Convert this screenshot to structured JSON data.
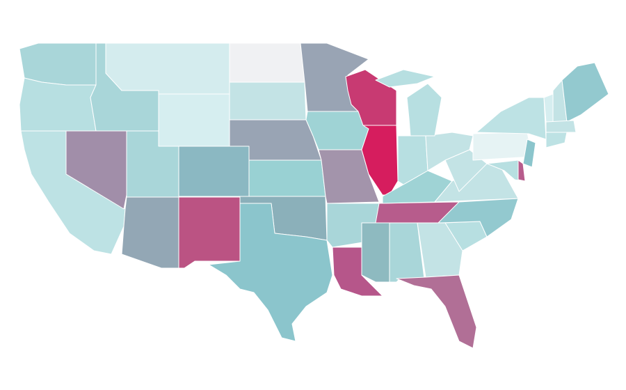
{
  "map": {
    "regions": [
      {
        "color": "#a9d6d9"
      },
      {
        "color": "#b7dfe1"
      },
      {
        "color": "#bde2e4"
      },
      {
        "color": "#a18ea9"
      },
      {
        "color": "#a9d6d9"
      },
      {
        "color": "#d4ecee"
      },
      {
        "color": "#d6eef0"
      },
      {
        "color": "#a9d6d9"
      },
      {
        "color": "#93a7b5"
      },
      {
        "color": "#8bb8c2"
      },
      {
        "color": "#bb5383"
      },
      {
        "color": "#f0f1f3"
      },
      {
        "color": "#c3e3e5"
      },
      {
        "color": "#99a4b4"
      },
      {
        "color": "#99d1d3"
      },
      {
        "color": "#8bb0ba"
      },
      {
        "color": "#8bc5cc"
      },
      {
        "color": "#99a4b4"
      },
      {
        "color": "#9fd3d5"
      },
      {
        "color": "#a394ab"
      },
      {
        "color": "#c83a72"
      },
      {
        "color": "#d61d5e"
      },
      {
        "color": "#a9d6d9"
      },
      {
        "color": "#b6568a"
      },
      {
        "color": "#8ebac0"
      },
      {
        "color": "#a9d6d9"
      },
      {
        "color": "#c3e3e5"
      },
      {
        "color": "#b16f96"
      },
      {
        "color": "#b75c8c"
      },
      {
        "color": "#9fd3d5"
      },
      {
        "color": "#b7dfe1"
      },
      {
        "color": "#93c9cf"
      },
      {
        "color": "#c3e3e5"
      },
      {
        "color": "#c3e3e5"
      },
      {
        "color": "#b7dfe1"
      },
      {
        "color": "#c3e3e5"
      },
      {
        "color": "#b7dfe1"
      },
      {
        "color": "#b7dfe1"
      },
      {
        "color": "#e6f3f4"
      },
      {
        "color": "#bde2e4"
      },
      {
        "color": "#8bc5cc"
      },
      {
        "color": "#b7dfe1"
      },
      {
        "color": "#b75c8c"
      },
      {
        "color": "#d6eef0"
      },
      {
        "color": "#c3e3e5"
      },
      {
        "color": "#93c9cf"
      },
      {
        "color": "#c3e3e5"
      },
      {
        "color": "#bde2e4"
      }
    ]
  }
}
